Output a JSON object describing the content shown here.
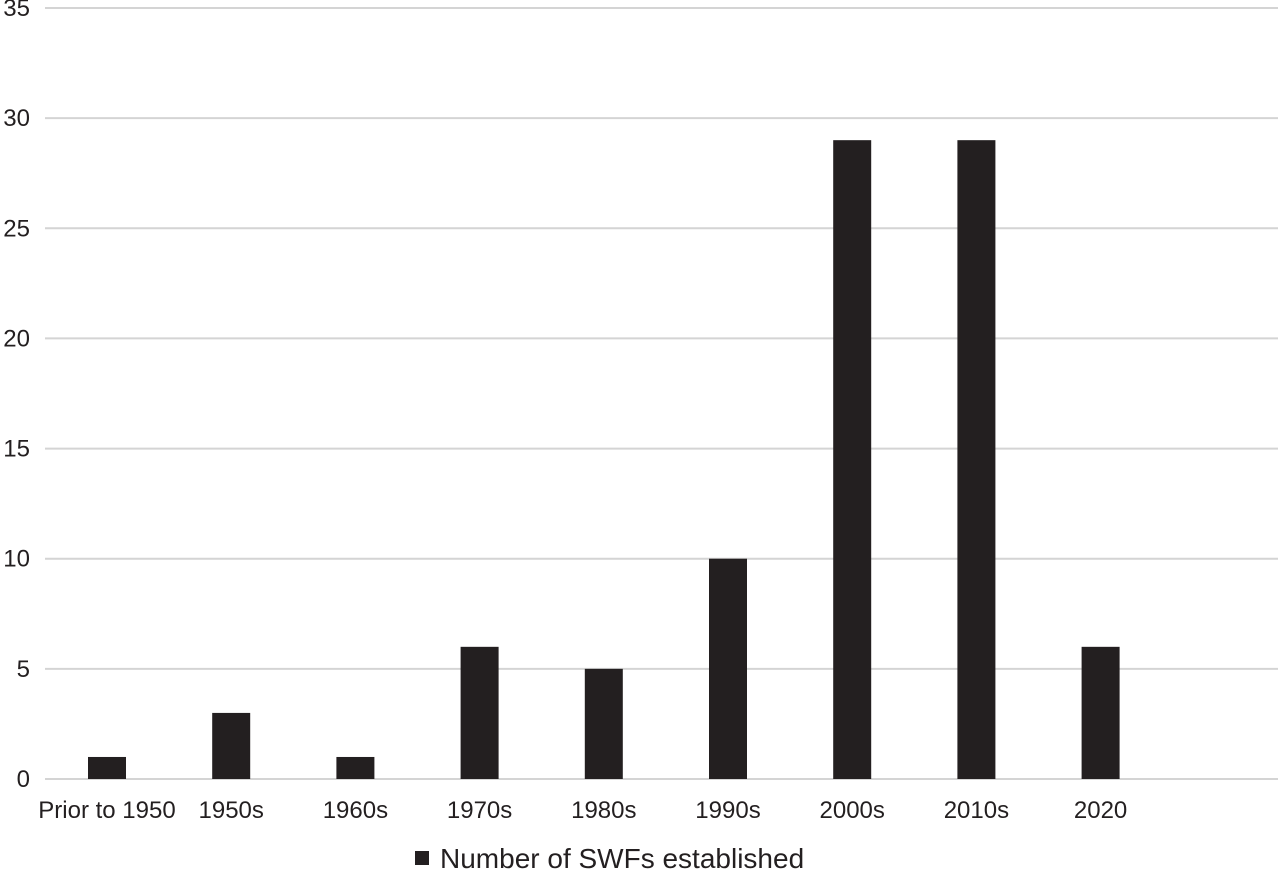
{
  "chart_data": {
    "type": "bar",
    "categories": [
      "Prior to 1950",
      "1950s",
      "1960s",
      "1970s",
      "1980s",
      "1990s",
      "2000s",
      "2010s",
      "2020"
    ],
    "series": [
      {
        "name": "Number of SWFs established",
        "values": [
          1,
          3,
          1,
          6,
          5,
          10,
          29,
          29,
          6
        ],
        "color": "#231f20"
      }
    ],
    "ylim": [
      0,
      35
    ],
    "yticks": [
      0,
      5,
      10,
      15,
      20,
      25,
      30,
      35
    ],
    "grid": true,
    "legend_position": "bottom-center"
  }
}
